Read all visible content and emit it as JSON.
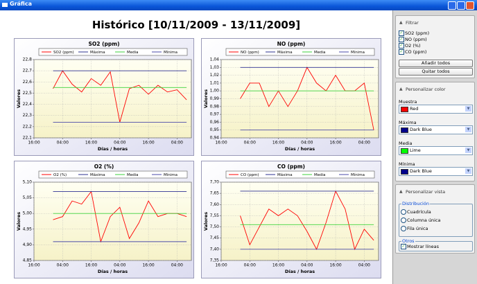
{
  "window": {
    "title": "Gráfica"
  },
  "heading": "Histórico [10/11/2009 - 13/11/2009]",
  "chart_data": [
    {
      "type": "line",
      "title": "SO2 (ppm)",
      "x_label": "Días / horas",
      "y_label": "Valores",
      "x": [
        8,
        12,
        16,
        20,
        24,
        28,
        32,
        36,
        40,
        44,
        48,
        52,
        56,
        60,
        64
      ],
      "xlim": [
        0,
        66
      ],
      "xticks": [
        {
          "value": 0,
          "label": "16:00"
        },
        {
          "value": 12,
          "label": "04:00"
        },
        {
          "value": 24,
          "label": "16:00"
        },
        {
          "value": 36,
          "label": "04:00"
        },
        {
          "value": 48,
          "label": "16:00"
        },
        {
          "value": 60,
          "label": "04:00"
        }
      ],
      "ylim": [
        22.1,
        22.8
      ],
      "yticks": [
        {
          "value": 22.1,
          "label": "22,1"
        },
        {
          "value": 22.2,
          "label": "22,2"
        },
        {
          "value": 22.3,
          "label": "22,3"
        },
        {
          "value": 22.4,
          "label": "22,4"
        },
        {
          "value": 22.5,
          "label": "22,5"
        },
        {
          "value": 22.6,
          "label": "22,6"
        },
        {
          "value": 22.7,
          "label": "22,7"
        },
        {
          "value": 22.8,
          "label": "22,8"
        }
      ],
      "grid": true,
      "series": [
        {
          "name": "SO2 (ppm)",
          "color": "#ff0000",
          "values": [
            22.54,
            22.7,
            22.58,
            22.51,
            22.63,
            22.57,
            22.69,
            22.24,
            22.54,
            22.57,
            22.49,
            22.57,
            22.51,
            22.53,
            22.44
          ]
        },
        {
          "name": "Máxima",
          "color": "#2e3192",
          "value": 22.7
        },
        {
          "name": "Media",
          "color": "#3cd23c",
          "value": 22.55
        },
        {
          "name": "Mínima",
          "color": "#4a4aa8",
          "value": 22.24
        }
      ]
    },
    {
      "type": "line",
      "title": "NO (ppm)",
      "x_label": "Días / horas",
      "y_label": "Valores",
      "x": [
        8,
        12,
        16,
        20,
        24,
        28,
        32,
        36,
        40,
        44,
        48,
        52,
        56,
        60,
        64
      ],
      "xlim": [
        0,
        66
      ],
      "xticks": [
        {
          "value": 0,
          "label": "16:00"
        },
        {
          "value": 12,
          "label": "04:00"
        },
        {
          "value": 24,
          "label": "16:00"
        },
        {
          "value": 36,
          "label": "04:00"
        },
        {
          "value": 48,
          "label": "16:00"
        },
        {
          "value": 60,
          "label": "04:00"
        }
      ],
      "ylim": [
        0.94,
        1.04
      ],
      "yticks": [
        {
          "value": 0.94,
          "label": "0,94"
        },
        {
          "value": 0.95,
          "label": "0,95"
        },
        {
          "value": 0.96,
          "label": "0,96"
        },
        {
          "value": 0.97,
          "label": "0,97"
        },
        {
          "value": 0.98,
          "label": "0,98"
        },
        {
          "value": 0.99,
          "label": "0,99"
        },
        {
          "value": 1.0,
          "label": "1,00"
        },
        {
          "value": 1.01,
          "label": "1,01"
        },
        {
          "value": 1.02,
          "label": "1,02"
        },
        {
          "value": 1.03,
          "label": "1,03"
        },
        {
          "value": 1.04,
          "label": "1,04"
        }
      ],
      "grid": true,
      "series": [
        {
          "name": "NO (ppm)",
          "color": "#ff0000",
          "values": [
            0.99,
            1.01,
            1.01,
            0.98,
            1.0,
            0.98,
            1.0,
            1.03,
            1.01,
            1.0,
            1.02,
            1.0,
            1.0,
            1.01,
            0.95
          ]
        },
        {
          "name": "Máxima",
          "color": "#2e3192",
          "value": 1.03
        },
        {
          "name": "Media",
          "color": "#3cd23c",
          "value": 1.0
        },
        {
          "name": "Mínima",
          "color": "#4a4aa8",
          "value": 0.95
        }
      ]
    },
    {
      "type": "line",
      "title": "O2 (%)",
      "x_label": "Días / horas",
      "y_label": "Valores",
      "x": [
        8,
        12,
        16,
        20,
        24,
        28,
        32,
        36,
        40,
        44,
        48,
        52,
        56,
        60,
        64
      ],
      "xlim": [
        0,
        66
      ],
      "xticks": [
        {
          "value": 0,
          "label": "16:00"
        },
        {
          "value": 12,
          "label": "04:00"
        },
        {
          "value": 24,
          "label": "16:00"
        },
        {
          "value": 36,
          "label": "04:00"
        },
        {
          "value": 48,
          "label": "16:00"
        },
        {
          "value": 60,
          "label": "04:00"
        }
      ],
      "ylim": [
        4.85,
        5.1
      ],
      "yticks": [
        {
          "value": 4.85,
          "label": "4,85"
        },
        {
          "value": 4.9,
          "label": "4,90"
        },
        {
          "value": 4.95,
          "label": "4,95"
        },
        {
          "value": 5.0,
          "label": "5,00"
        },
        {
          "value": 5.05,
          "label": "5,05"
        },
        {
          "value": 5.1,
          "label": "5,10"
        }
      ],
      "grid": true,
      "series": [
        {
          "name": "O2 (%)",
          "color": "#ff0000",
          "values": [
            4.98,
            4.99,
            5.04,
            5.03,
            5.07,
            4.91,
            4.99,
            5.02,
            4.92,
            4.97,
            5.04,
            4.99,
            5.0,
            5.0,
            4.99
          ]
        },
        {
          "name": "Máxima",
          "color": "#2e3192",
          "value": 5.07
        },
        {
          "name": "Media",
          "color": "#3cd23c",
          "value": 5.0
        },
        {
          "name": "Mínima",
          "color": "#4a4aa8",
          "value": 4.91
        }
      ]
    },
    {
      "type": "line",
      "title": "CO (ppm)",
      "x_label": "Días / horas",
      "y_label": "Valores",
      "x": [
        8,
        12,
        16,
        20,
        24,
        28,
        32,
        36,
        40,
        44,
        48,
        52,
        56,
        60,
        64
      ],
      "xlim": [
        0,
        66
      ],
      "xticks": [
        {
          "value": 0,
          "label": "16:00"
        },
        {
          "value": 12,
          "label": "04:00"
        },
        {
          "value": 24,
          "label": "16:00"
        },
        {
          "value": 36,
          "label": "04:00"
        },
        {
          "value": 48,
          "label": "16:00"
        },
        {
          "value": 60,
          "label": "04:00"
        }
      ],
      "ylim": [
        7.35,
        7.7
      ],
      "yticks": [
        {
          "value": 7.35,
          "label": "7,35"
        },
        {
          "value": 7.4,
          "label": "7,40"
        },
        {
          "value": 7.45,
          "label": "7,45"
        },
        {
          "value": 7.5,
          "label": "7,50"
        },
        {
          "value": 7.55,
          "label": "7,55"
        },
        {
          "value": 7.6,
          "label": "7,60"
        },
        {
          "value": 7.65,
          "label": "7,65"
        },
        {
          "value": 7.7,
          "label": "7,70"
        }
      ],
      "grid": true,
      "series": [
        {
          "name": "CO (ppm)",
          "color": "#ff0000",
          "values": [
            7.55,
            7.42,
            7.5,
            7.58,
            7.55,
            7.58,
            7.55,
            7.48,
            7.4,
            7.52,
            7.66,
            7.58,
            7.4,
            7.49,
            7.44
          ]
        },
        {
          "name": "Máxima",
          "color": "#2e3192",
          "value": 7.66
        },
        {
          "name": "Media",
          "color": "#3cd23c",
          "value": 7.51
        },
        {
          "name": "Mínima",
          "color": "#4a4aa8",
          "value": 7.4
        }
      ]
    }
  ],
  "panel": {
    "filter": {
      "title": "Filtrar",
      "items": [
        "SO2 (ppm)",
        "NO (ppm)",
        "O2 (%)",
        "CO (ppm)"
      ],
      "buttons": [
        "Añadir todos",
        "Quitar todos"
      ]
    },
    "color": {
      "title": "Personalizar color",
      "items": [
        {
          "label": "Muestra",
          "value": "Red"
        },
        {
          "label": "Máxima",
          "value": "Dark Blue"
        },
        {
          "label": "Media",
          "value": "Lime"
        },
        {
          "label": "Mínima",
          "value": "Dark Blue"
        }
      ]
    },
    "view": {
      "title": "Personalizar vista",
      "group": "Distribución",
      "options": [
        "Cuadrícula",
        "Columna única",
        "Fila única"
      ],
      "other_group": "Otros",
      "other": "Mostrar líneas"
    }
  }
}
